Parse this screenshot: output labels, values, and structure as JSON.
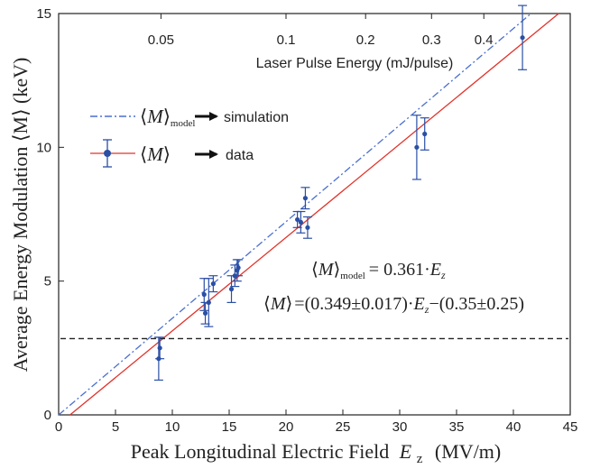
{
  "chart_data": {
    "type": "scatter",
    "xlabel_main": "Peak Longitudinal Electric Field",
    "xlabel_var": "E",
    "xlabel_sub": "z",
    "xlabel_unit": "(MV/m)",
    "ylabel": "Average Energy Modulation ⟨M⟩ (keV)",
    "top_axis_label": "Laser Pulse Energy (mJ/pulse)",
    "xlim": [
      0,
      45
    ],
    "ylim": [
      0,
      15
    ],
    "x_ticks": [
      "0",
      "5",
      "10",
      "15",
      "20",
      "25",
      "30",
      "35",
      "40",
      "45"
    ],
    "y_ticks": [
      "0",
      "5",
      "10",
      "15"
    ],
    "top_ticks": [
      {
        "label": "0.05",
        "e": 9.0
      },
      {
        "label": "0.1",
        "e": 20.0
      },
      {
        "label": "0.2",
        "e": 27.0
      },
      {
        "label": "0.3",
        "e": 32.8
      },
      {
        "label": "0.4",
        "e": 37.4
      }
    ],
    "grid": false,
    "series": [
      {
        "name": "⟨M⟩ → data",
        "kind": "points_with_errorbars",
        "color": "#2a4fa5",
        "points": [
          {
            "x": 8.9,
            "y": 2.5,
            "err": 0.4
          },
          {
            "x": 8.8,
            "y": 2.1,
            "err": 0.8
          },
          {
            "x": 12.8,
            "y": 4.5,
            "err": 0.6
          },
          {
            "x": 12.9,
            "y": 3.8,
            "err": 0.4
          },
          {
            "x": 13.2,
            "y": 4.2,
            "err": 0.9
          },
          {
            "x": 13.6,
            "y": 4.9,
            "err": 0.3
          },
          {
            "x": 15.2,
            "y": 4.7,
            "err": 0.5
          },
          {
            "x": 15.5,
            "y": 5.2,
            "err": 0.4
          },
          {
            "x": 15.7,
            "y": 5.4,
            "err": 0.4
          },
          {
            "x": 15.8,
            "y": 5.5,
            "err": 0.3
          },
          {
            "x": 21.0,
            "y": 7.3,
            "err": 0.3
          },
          {
            "x": 21.3,
            "y": 7.2,
            "err": 0.4
          },
          {
            "x": 21.7,
            "y": 8.1,
            "err": 0.4
          },
          {
            "x": 21.9,
            "y": 7.0,
            "err": 0.4
          },
          {
            "x": 31.5,
            "y": 10.0,
            "err": 1.2
          },
          {
            "x": 32.2,
            "y": 10.5,
            "err": 0.6
          },
          {
            "x": 40.8,
            "y": 14.1,
            "err": 1.2
          }
        ]
      },
      {
        "name": "data fit",
        "kind": "line",
        "color": "#e0342c",
        "slope": 0.349,
        "intercept": -0.35
      },
      {
        "name": "⟨M⟩model → simulation",
        "kind": "dashdot_line",
        "color": "#4a6fd0",
        "slope": 0.361,
        "intercept": 0
      },
      {
        "name": "threshold",
        "kind": "hline",
        "color": "#222222",
        "y": 2.85
      }
    ],
    "legend": {
      "position": "upper-left",
      "model_label": "model",
      "model_arrow_text": "simulation",
      "data_arrow_text": "data"
    },
    "annotations": {
      "eq1_sub": "model",
      "eq1_rhs": "= 0.361·",
      "eq1_var": "E",
      "eq1_var_sub": "z",
      "eq2_mid": "=(0.349±0.017)·",
      "eq2_var": "E",
      "eq2_var_sub": "z",
      "eq2_tail": "−(0.35±0.25)"
    }
  }
}
